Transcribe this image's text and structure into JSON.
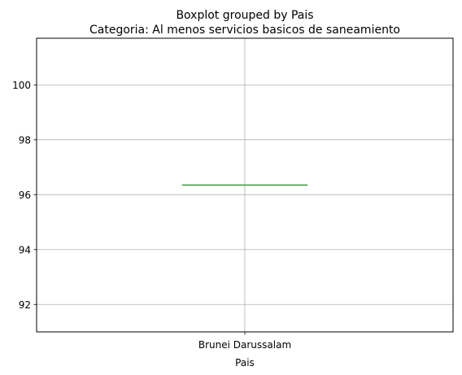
{
  "chart_data": {
    "type": "box",
    "suptitle": "Boxplot grouped by Pais",
    "title": "Categoria: Al menos servicios basicos de saneamiento",
    "xlabel": "Pais",
    "ylabel": "",
    "categories": [
      "Brunei Darussalam"
    ],
    "series": [
      {
        "values": [
          96.35
        ],
        "min": 96.35,
        "q1": 96.35,
        "median": 96.35,
        "q3": 96.35,
        "max": 96.35
      }
    ],
    "ylim": [
      91.0,
      101.7
    ],
    "yticks": [
      92,
      94,
      96,
      98,
      100
    ],
    "grid": true,
    "legend": "none",
    "colors": {
      "box": "#1f77b4",
      "median": "#2ca02c",
      "grid": "#b0b0b0",
      "axis": "#000000"
    }
  }
}
